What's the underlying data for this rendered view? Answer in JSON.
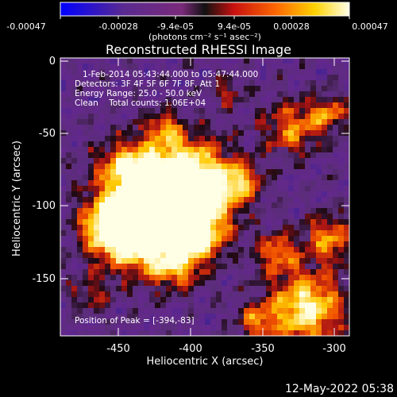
{
  "colorbar": {
    "ticks": [
      "-0.00047",
      "-0.00028",
      "-9.4e-05",
      "9.4e-05",
      "0.00028",
      "0.00047"
    ],
    "units_label": "(photons cm⁻² s⁻¹ asec⁻²)"
  },
  "plot": {
    "title": "Reconstructed RHESSI Image",
    "xlabel": "Heliocentric X (arcsec)",
    "ylabel": "Heliocentric Y (arcsec)",
    "x_ticks": [
      "-450",
      "-400",
      "-350",
      "-300"
    ],
    "y_ticks": [
      "0",
      "-50",
      "-100",
      "-150"
    ],
    "xlim": [
      -488,
      -292
    ],
    "ylim": [
      -190,
      2
    ],
    "annotations": {
      "time_range": "1-Feb-2014 05:43:44.000 to 05:47:44.000",
      "detectors": "Detectors: 3F 4F 5F 6F 7F 8F, Att 1",
      "energy": "Energy Range: 25.0 - 50.0 keV",
      "method": "Clean    Total counts: 1.06E+04",
      "peak": "Position of Peak = [-394,-83]"
    }
  },
  "footer": {
    "timestamp": "12-May-2022 05:38"
  },
  "colors": {
    "background": "#000000",
    "foreground": "#ffffff"
  }
}
